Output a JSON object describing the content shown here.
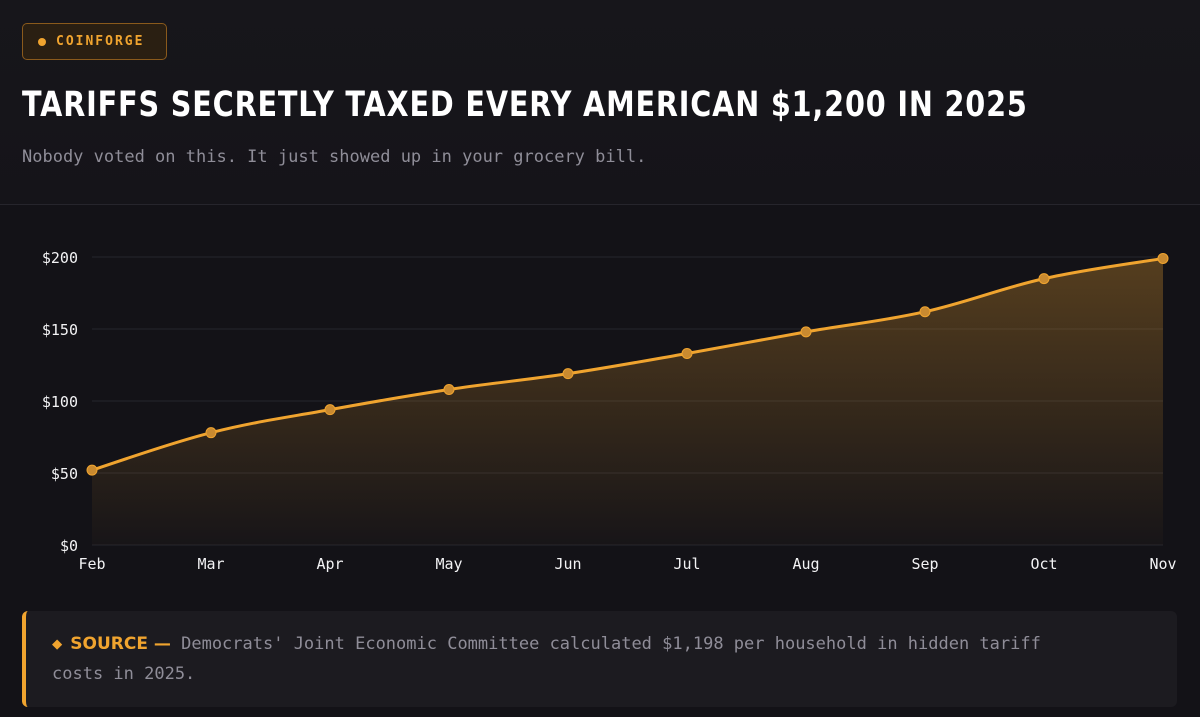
{
  "brand": {
    "name": "COINFORGE"
  },
  "header": {
    "title": "TARIFFS SECRETLY TAXED EVERY AMERICAN $1,200 IN 2025",
    "subtitle": "Nobody voted on this. It just showed up in your grocery bill."
  },
  "colors": {
    "accent": "#f0a42f",
    "background": "#131217",
    "grid": "#26252c"
  },
  "chart_data": {
    "type": "area",
    "categories": [
      "Feb",
      "Mar",
      "Apr",
      "May",
      "Jun",
      "Jul",
      "Aug",
      "Sep",
      "Oct",
      "Nov"
    ],
    "values": [
      52,
      78,
      94,
      108,
      119,
      133,
      148,
      162,
      185,
      199
    ],
    "ylim": [
      0,
      200
    ],
    "yticks": [
      0,
      50,
      100,
      150,
      200
    ],
    "ytick_labels": [
      "$0",
      "$50",
      "$100",
      "$150",
      "$200"
    ],
    "grid": true,
    "legend": false
  },
  "source": {
    "icon": "diamond-icon",
    "diamond": "◆",
    "label": "SOURCE —",
    "line1": "Democrats' Joint Economic Committee calculated $1,198 per household in hidden tariff",
    "line2": "costs in 2025."
  }
}
